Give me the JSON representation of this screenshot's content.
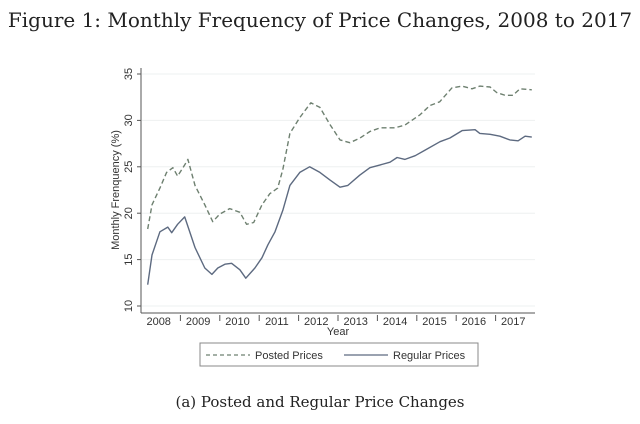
{
  "figure": {
    "title": "Figure 1: Monthly Frequency of Price Changes, 2008 to 2017",
    "caption": "(a) Posted and Regular Price Changes"
  },
  "chart_data": {
    "type": "line",
    "title": "Figure 1: Monthly Frequency of Price Changes, 2008 to 2017",
    "xlabel": "Year",
    "ylabel": "Monthly Frenquency (%)",
    "xlim": [
      2008.0,
      2018.0
    ],
    "ylim": [
      10,
      35
    ],
    "yticks": [
      10,
      15,
      20,
      25,
      30,
      35
    ],
    "xtick_labels": [
      "2008",
      "2009",
      "2010",
      "2011",
      "2012",
      "2013",
      "2014",
      "2015",
      "2016",
      "2017"
    ],
    "grid": true,
    "legend_position": "bottom",
    "series": [
      {
        "name": "Posted Prices",
        "style": "dashed",
        "color": "#6e8070",
        "points": [
          [
            2008.17,
            18.3
          ],
          [
            2008.28,
            20.9
          ],
          [
            2008.48,
            22.7
          ],
          [
            2008.65,
            24.4
          ],
          [
            2008.81,
            24.9
          ],
          [
            2008.93,
            24.0
          ],
          [
            2009.11,
            25.2
          ],
          [
            2009.19,
            25.8
          ],
          [
            2009.37,
            23.0
          ],
          [
            2009.62,
            20.9
          ],
          [
            2009.82,
            19.1
          ],
          [
            2010.0,
            19.9
          ],
          [
            2010.25,
            20.5
          ],
          [
            2010.51,
            20.1
          ],
          [
            2010.68,
            18.8
          ],
          [
            2010.86,
            19.0
          ],
          [
            2011.07,
            20.9
          ],
          [
            2011.27,
            22.1
          ],
          [
            2011.47,
            22.7
          ],
          [
            2011.6,
            24.7
          ],
          [
            2011.78,
            28.6
          ],
          [
            2012.03,
            30.3
          ],
          [
            2012.31,
            31.9
          ],
          [
            2012.54,
            31.4
          ],
          [
            2012.79,
            29.6
          ],
          [
            2013.05,
            27.9
          ],
          [
            2013.3,
            27.6
          ],
          [
            2013.56,
            28.1
          ],
          [
            2013.81,
            28.8
          ],
          [
            2014.07,
            29.2
          ],
          [
            2014.45,
            29.2
          ],
          [
            2014.7,
            29.5
          ],
          [
            2015.08,
            30.6
          ],
          [
            2015.33,
            31.6
          ],
          [
            2015.58,
            32.0
          ],
          [
            2015.89,
            33.5
          ],
          [
            2016.15,
            33.7
          ],
          [
            2016.4,
            33.4
          ],
          [
            2016.6,
            33.7
          ],
          [
            2016.86,
            33.6
          ],
          [
            2017.03,
            33.0
          ],
          [
            2017.24,
            32.7
          ],
          [
            2017.44,
            32.7
          ],
          [
            2017.62,
            33.4
          ],
          [
            2017.92,
            33.3
          ]
        ]
      },
      {
        "name": "Regular Prices",
        "style": "solid",
        "color": "#5d6a80",
        "points": [
          [
            2008.17,
            12.3
          ],
          [
            2008.28,
            15.5
          ],
          [
            2008.48,
            18.0
          ],
          [
            2008.68,
            18.5
          ],
          [
            2008.78,
            17.9
          ],
          [
            2008.93,
            18.8
          ],
          [
            2009.11,
            19.6
          ],
          [
            2009.37,
            16.3
          ],
          [
            2009.62,
            14.1
          ],
          [
            2009.8,
            13.4
          ],
          [
            2009.95,
            14.1
          ],
          [
            2010.13,
            14.5
          ],
          [
            2010.3,
            14.6
          ],
          [
            2010.51,
            13.9
          ],
          [
            2010.66,
            13.0
          ],
          [
            2010.89,
            14.1
          ],
          [
            2011.07,
            15.2
          ],
          [
            2011.22,
            16.6
          ],
          [
            2011.4,
            18.0
          ],
          [
            2011.6,
            20.3
          ],
          [
            2011.78,
            23.0
          ],
          [
            2012.03,
            24.4
          ],
          [
            2012.28,
            25.0
          ],
          [
            2012.54,
            24.4
          ],
          [
            2012.79,
            23.6
          ],
          [
            2013.05,
            22.8
          ],
          [
            2013.25,
            23.0
          ],
          [
            2013.55,
            24.1
          ],
          [
            2013.81,
            24.9
          ],
          [
            2014.07,
            25.2
          ],
          [
            2014.32,
            25.5
          ],
          [
            2014.5,
            26.0
          ],
          [
            2014.7,
            25.8
          ],
          [
            2014.96,
            26.2
          ],
          [
            2015.21,
            26.8
          ],
          [
            2015.59,
            27.7
          ],
          [
            2015.84,
            28.1
          ],
          [
            2016.15,
            28.9
          ],
          [
            2016.48,
            29.0
          ],
          [
            2016.6,
            28.6
          ],
          [
            2016.86,
            28.5
          ],
          [
            2017.11,
            28.3
          ],
          [
            2017.36,
            27.9
          ],
          [
            2017.57,
            27.8
          ],
          [
            2017.75,
            28.3
          ],
          [
            2017.92,
            28.2
          ]
        ]
      }
    ]
  }
}
